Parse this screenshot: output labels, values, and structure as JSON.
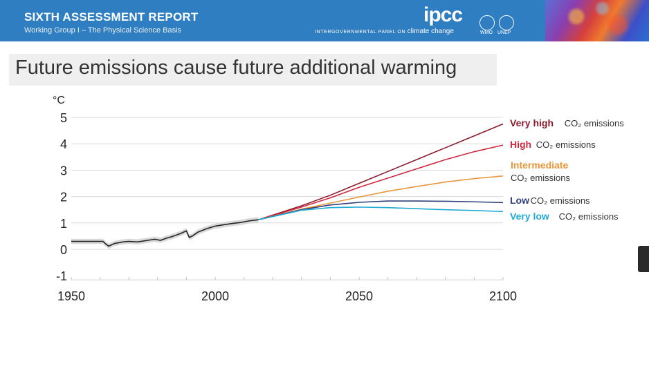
{
  "header": {
    "title": "SIXTH ASSESSMENT REPORT",
    "subtitle": "Working Group I – The Physical Science Basis",
    "brand": "ipcc",
    "brand_tagline_small": "INTERGOVERNMENTAL PANEL ON",
    "brand_tagline_big": "climate change",
    "logo_wmo": "WMO",
    "logo_unep": "UNEP"
  },
  "slide": {
    "heading": "Future emissions cause future additional warming"
  },
  "chart_data": {
    "type": "line",
    "title": "Future emissions cause future additional warming",
    "ylabel": "°C",
    "xlabel": "",
    "xlim": [
      1950,
      2100
    ],
    "ylim": [
      -1,
      5
    ],
    "xticks": [
      "1950",
      "2000",
      "2050",
      "2100"
    ],
    "yticks": [
      "5",
      "4",
      "3",
      "2",
      "1",
      "0",
      "-1"
    ],
    "grid": true,
    "legend": "right, labels at line ends",
    "historical": {
      "color": "#222222",
      "x": [
        1950,
        1953,
        1955,
        1958,
        1961,
        1962,
        1963,
        1965,
        1968,
        1970,
        1973,
        1976,
        1979,
        1981,
        1983,
        1985,
        1988,
        1990,
        1991,
        1992,
        1994,
        1997,
        2000,
        2003,
        2006,
        2009,
        2012,
        2015
      ],
      "y": [
        0.3,
        0.3,
        0.3,
        0.3,
        0.3,
        0.2,
        0.12,
        0.22,
        0.28,
        0.3,
        0.28,
        0.33,
        0.38,
        0.34,
        0.42,
        0.48,
        0.6,
        0.7,
        0.45,
        0.5,
        0.65,
        0.78,
        0.88,
        0.93,
        0.98,
        1.02,
        1.08,
        1.12
      ],
      "band": 0.1,
      "band_color": "#d9d9d9"
    },
    "series": [
      {
        "name": "Very high",
        "suffix": "CO₂ emissions",
        "color": "#8b1c2e",
        "x": [
          2015,
          2030,
          2040,
          2050,
          2060,
          2070,
          2080,
          2090,
          2100
        ],
        "y": [
          1.12,
          1.65,
          2.05,
          2.5,
          2.95,
          3.4,
          3.85,
          4.3,
          4.75
        ]
      },
      {
        "name": "High",
        "suffix": "CO₂ emissions",
        "color": "#d0283e",
        "x": [
          2015,
          2030,
          2040,
          2050,
          2060,
          2070,
          2080,
          2090,
          2100
        ],
        "y": [
          1.12,
          1.6,
          1.95,
          2.35,
          2.7,
          3.05,
          3.4,
          3.7,
          3.95
        ]
      },
      {
        "name": "Intermediate",
        "suffix": "CO₂ emissions",
        "color": "#e8963a",
        "x": [
          2015,
          2030,
          2040,
          2050,
          2060,
          2070,
          2080,
          2090,
          2100
        ],
        "y": [
          1.12,
          1.52,
          1.75,
          1.98,
          2.2,
          2.38,
          2.55,
          2.68,
          2.78
        ]
      },
      {
        "name": "Low",
        "suffix": "CO₂ emissions",
        "color": "#2e3f7a",
        "x": [
          2015,
          2030,
          2040,
          2050,
          2060,
          2070,
          2080,
          2090,
          2100
        ],
        "y": [
          1.12,
          1.5,
          1.68,
          1.78,
          1.83,
          1.83,
          1.82,
          1.8,
          1.77
        ]
      },
      {
        "name": "Very low",
        "suffix": "CO₂ emissions",
        "color": "#21a9d6",
        "x": [
          2015,
          2030,
          2040,
          2050,
          2060,
          2070,
          2080,
          2090,
          2100
        ],
        "y": [
          1.12,
          1.48,
          1.58,
          1.6,
          1.58,
          1.54,
          1.5,
          1.47,
          1.43
        ]
      }
    ]
  }
}
